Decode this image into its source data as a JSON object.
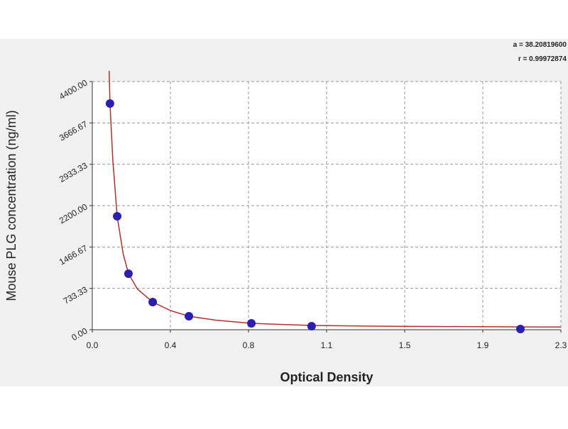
{
  "chart_data": {
    "type": "scatter",
    "x_label": "Optical Density",
    "y_label": "Mouse PLG concentration (ng/ml)",
    "annotations": [
      "a = 38.20819600",
      "r = 0.99972874"
    ],
    "xlim": [
      0,
      2.28
    ],
    "ylim": [
      0,
      4400
    ],
    "xticks": [
      {
        "value": 0,
        "label": "0.0"
      },
      {
        "value": 0.38,
        "label": "0.4"
      },
      {
        "value": 0.76,
        "label": "0.8"
      },
      {
        "value": 1.14,
        "label": "1.1"
      },
      {
        "value": 1.52,
        "label": "1.5"
      },
      {
        "value": 1.9,
        "label": "1.9"
      },
      {
        "value": 2.28,
        "label": "2.3"
      }
    ],
    "yticks": [
      {
        "value": 0,
        "label": "0.00"
      },
      {
        "value": 733.33,
        "label": "733.33"
      },
      {
        "value": 1466.67,
        "label": "1466.67"
      },
      {
        "value": 2200,
        "label": "2200.00"
      },
      {
        "value": 2933.33,
        "label": "2933.33"
      },
      {
        "value": 3666.67,
        "label": "3666.67"
      },
      {
        "value": 4400,
        "label": "4400.00"
      }
    ],
    "grid": true,
    "series": [
      {
        "color": "#2a1fb0",
        "x": [
          0.086,
          0.121,
          0.176,
          0.294,
          0.47,
          0.774,
          1.067,
          2.083
        ],
        "values": [
          4010,
          2011,
          993,
          490,
          239,
          113,
          63,
          13
        ]
      },
      {
        "color": "#b03030",
        "line": true,
        "x": [
          0.082,
          0.086,
          0.1,
          0.121,
          0.15,
          0.176,
          0.22,
          0.294,
          0.38,
          0.47,
          0.6,
          0.774,
          1.067,
          1.5,
          2.083,
          2.28
        ],
        "values": [
          4590,
          4010,
          3000,
          2011,
          1350,
          993,
          720,
          490,
          340,
          239,
          170,
          113,
          75,
          60,
          50,
          48
        ]
      }
    ]
  }
}
